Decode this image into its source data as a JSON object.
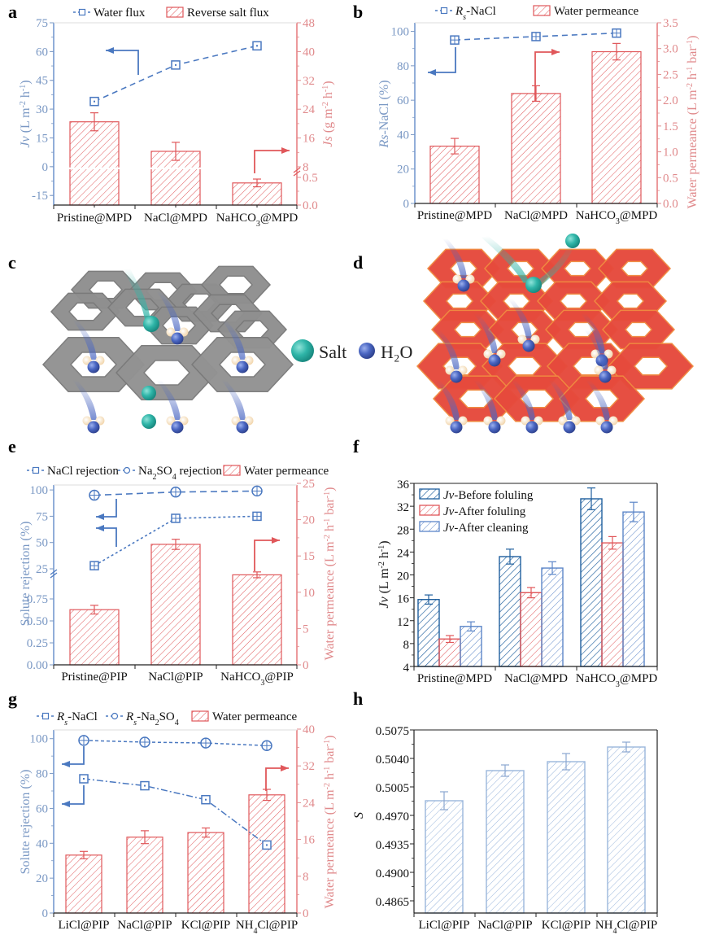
{
  "colors": {
    "blue": "#4a78c0",
    "blue_text": "#7a98c4",
    "dark_blue": "#1f5f9e",
    "red": "#e0575a",
    "red_text": "#e08a8c",
    "light_blue": "#8fb0dc",
    "gray_hex": "#8c8c8c",
    "red_hex": "#e64a3c",
    "teal": "#2fb5a8",
    "water_blue": "#4a66c2"
  },
  "panels": {
    "a": {
      "label": "a"
    },
    "b": {
      "label": "b"
    },
    "c": {
      "label": "c"
    },
    "d": {
      "label": "d"
    },
    "e": {
      "label": "e"
    },
    "f": {
      "label": "f"
    },
    "g": {
      "label": "g"
    },
    "h": {
      "label": "h"
    }
  },
  "illustration": {
    "legend_salt": "Salt",
    "legend_water": "H₂O"
  },
  "chart_data": [
    {
      "id": "a",
      "type": "bar+line",
      "title": "",
      "legend": [
        "Water flux",
        "Reverse salt flux"
      ],
      "legend_placement": "top",
      "categories": [
        "Pristine@MPD",
        "NaCl@MPD",
        "NaHCO₃@MPD"
      ],
      "ylabel_left": "Jv (L m⁻² h⁻¹)",
      "ylabel_right": "Js (g m⁻² h⁻¹)",
      "ylim_left": [
        -20,
        75
      ],
      "yticks_left": [
        -15,
        0,
        15,
        30,
        45,
        60,
        75
      ],
      "yticks_right": [
        "0.0",
        "0.5",
        "8",
        "16",
        "24",
        "32",
        "40",
        "48"
      ],
      "right_axis_break": "between 0.5 and 8",
      "series": [
        {
          "name": "Water flux",
          "kind": "line",
          "axis": "left",
          "values": [
            34,
            53,
            63
          ],
          "errors": [
            2,
            2,
            2
          ]
        },
        {
          "name": "Reverse salt flux",
          "kind": "bar",
          "axis": "right",
          "values": [
            20.5,
            12.3,
            0.4
          ],
          "errors": [
            2.5,
            2.5,
            0.07
          ]
        }
      ]
    },
    {
      "id": "b",
      "type": "bar+line",
      "legend": [
        "Rs-NaCl",
        "Water permeance"
      ],
      "legend_placement": "top",
      "categories": [
        "Pristine@MPD",
        "NaCl@MPD",
        "NaHCO₃@MPD"
      ],
      "ylabel_left": "Rs-NaCl (%)",
      "ylabel_right": "Water permeance (L m⁻² h⁻¹ bar⁻¹)",
      "ylim_left": [
        0,
        105
      ],
      "ylim_right": [
        0,
        3.5
      ],
      "yticks_left": [
        0,
        20,
        40,
        60,
        80,
        100
      ],
      "yticks_right": [
        "0.0",
        "0.5",
        "1.0",
        "1.5",
        "2.0",
        "2.5",
        "3.0",
        "3.5"
      ],
      "series": [
        {
          "name": "Rs-NaCl",
          "kind": "line",
          "axis": "left",
          "values": [
            95,
            97,
            99
          ],
          "errors": [
            0.8,
            0.8,
            0.8
          ]
        },
        {
          "name": "Water permeance",
          "kind": "bar",
          "axis": "right",
          "values": [
            1.11,
            2.13,
            2.94
          ],
          "errors": [
            0.15,
            0.15,
            0.16
          ]
        }
      ]
    },
    {
      "id": "e",
      "type": "bar+line",
      "legend": [
        "NaCl rejection",
        "Na₂SO₄ rejection",
        "Water permeance"
      ],
      "legend_placement": "top",
      "categories": [
        "Pristine@PIP",
        "NaCl@PIP",
        "NaHCO₃@PIP"
      ],
      "ylabel_left": "Solute rejection (%)",
      "ylabel_right": "Water permeance (L m⁻² h⁻¹ bar⁻¹)",
      "yticks_left": [
        "0.00",
        "0.25",
        "0.50",
        "0.75",
        "25",
        "50",
        "75",
        "100"
      ],
      "left_axis_break": "between 0.75 and 25",
      "ylim_right": [
        0,
        25
      ],
      "yticks_right": [
        0,
        5,
        10,
        15,
        20,
        25
      ],
      "series": [
        {
          "name": "NaCl rejection",
          "kind": "line",
          "axis": "left",
          "values": [
            28,
            73,
            75
          ]
        },
        {
          "name": "Na₂SO₄ rejection",
          "kind": "line",
          "axis": "left",
          "values": [
            95,
            98,
            99
          ]
        },
        {
          "name": "Water permeance",
          "kind": "bar",
          "axis": "right",
          "values": [
            7.6,
            16.6,
            12.4
          ],
          "errors": [
            0.6,
            0.7,
            0.4
          ]
        }
      ]
    },
    {
      "id": "f",
      "type": "bar",
      "legend": [
        "Jv-Before foluling",
        "Jv-After foluling",
        "Jv-After cleaning"
      ],
      "legend_placement": "top-left",
      "categories": [
        "Pristine@MPD",
        "NaCl@MPD",
        "NaHCO₃@MPD"
      ],
      "ylabel": "Jv (L m⁻² h⁻¹)",
      "ylim": [
        4,
        36
      ],
      "yticks": [
        4,
        8,
        12,
        16,
        20,
        24,
        28,
        32,
        36
      ],
      "series": [
        {
          "name": "Jv-Before foluling",
          "values": [
            15.7,
            23.2,
            33.3
          ],
          "errors": [
            0.8,
            1.3,
            1.9
          ]
        },
        {
          "name": "Jv-After foluling",
          "values": [
            8.8,
            16.9,
            25.6
          ],
          "errors": [
            0.6,
            0.9,
            1.1
          ]
        },
        {
          "name": "Jv-After cleaning",
          "values": [
            11.0,
            21.2,
            31.0
          ],
          "errors": [
            0.8,
            1.1,
            1.7
          ]
        }
      ]
    },
    {
      "id": "g",
      "type": "bar+line",
      "legend": [
        "Rs-NaCl",
        "Rs-Na₂SO₄",
        "Water permeance"
      ],
      "legend_placement": "top",
      "categories": [
        "LiCl@PIP",
        "NaCl@PIP",
        "KCl@PIP",
        "NH₄Cl@PIP"
      ],
      "ylabel_left": "Solute rejection (%)",
      "ylabel_right": "Water permeance (L m⁻² h⁻¹ bar⁻¹)",
      "ylim_left": [
        0,
        105
      ],
      "ylim_right": [
        0,
        40
      ],
      "yticks_left": [
        0,
        20,
        40,
        60,
        80,
        100
      ],
      "yticks_right": [
        0,
        8,
        16,
        24,
        32,
        40
      ],
      "series": [
        {
          "name": "Rs-NaCl",
          "kind": "line",
          "axis": "left",
          "values": [
            77,
            73,
            65,
            39
          ],
          "errors": [
            1,
            1,
            1.5,
            1
          ]
        },
        {
          "name": "Rs-Na₂SO₄",
          "kind": "line",
          "axis": "left",
          "values": [
            99,
            98,
            97.5,
            96
          ]
        },
        {
          "name": "Water permeance",
          "kind": "bar",
          "axis": "right",
          "values": [
            12.6,
            16.5,
            17.5,
            25.7
          ],
          "errors": [
            0.8,
            1.4,
            1.0,
            1.2
          ]
        }
      ]
    },
    {
      "id": "h",
      "type": "bar",
      "categories": [
        "LiCl@PIP",
        "NaCl@PIP",
        "KCl@PIP",
        "NH₄Cl@PIP"
      ],
      "ylabel": "S",
      "ylim": [
        0.485,
        0.5075
      ],
      "yticks": [
        "0.4865",
        "0.4900",
        "0.4935",
        "0.4970",
        "0.5005",
        "0.5040",
        "0.5075"
      ],
      "series": [
        {
          "name": "S",
          "values": [
            0.4988,
            0.5025,
            0.5036,
            0.5054
          ],
          "errors": [
            0.0011,
            0.0007,
            0.001,
            0.0006
          ]
        }
      ]
    }
  ]
}
